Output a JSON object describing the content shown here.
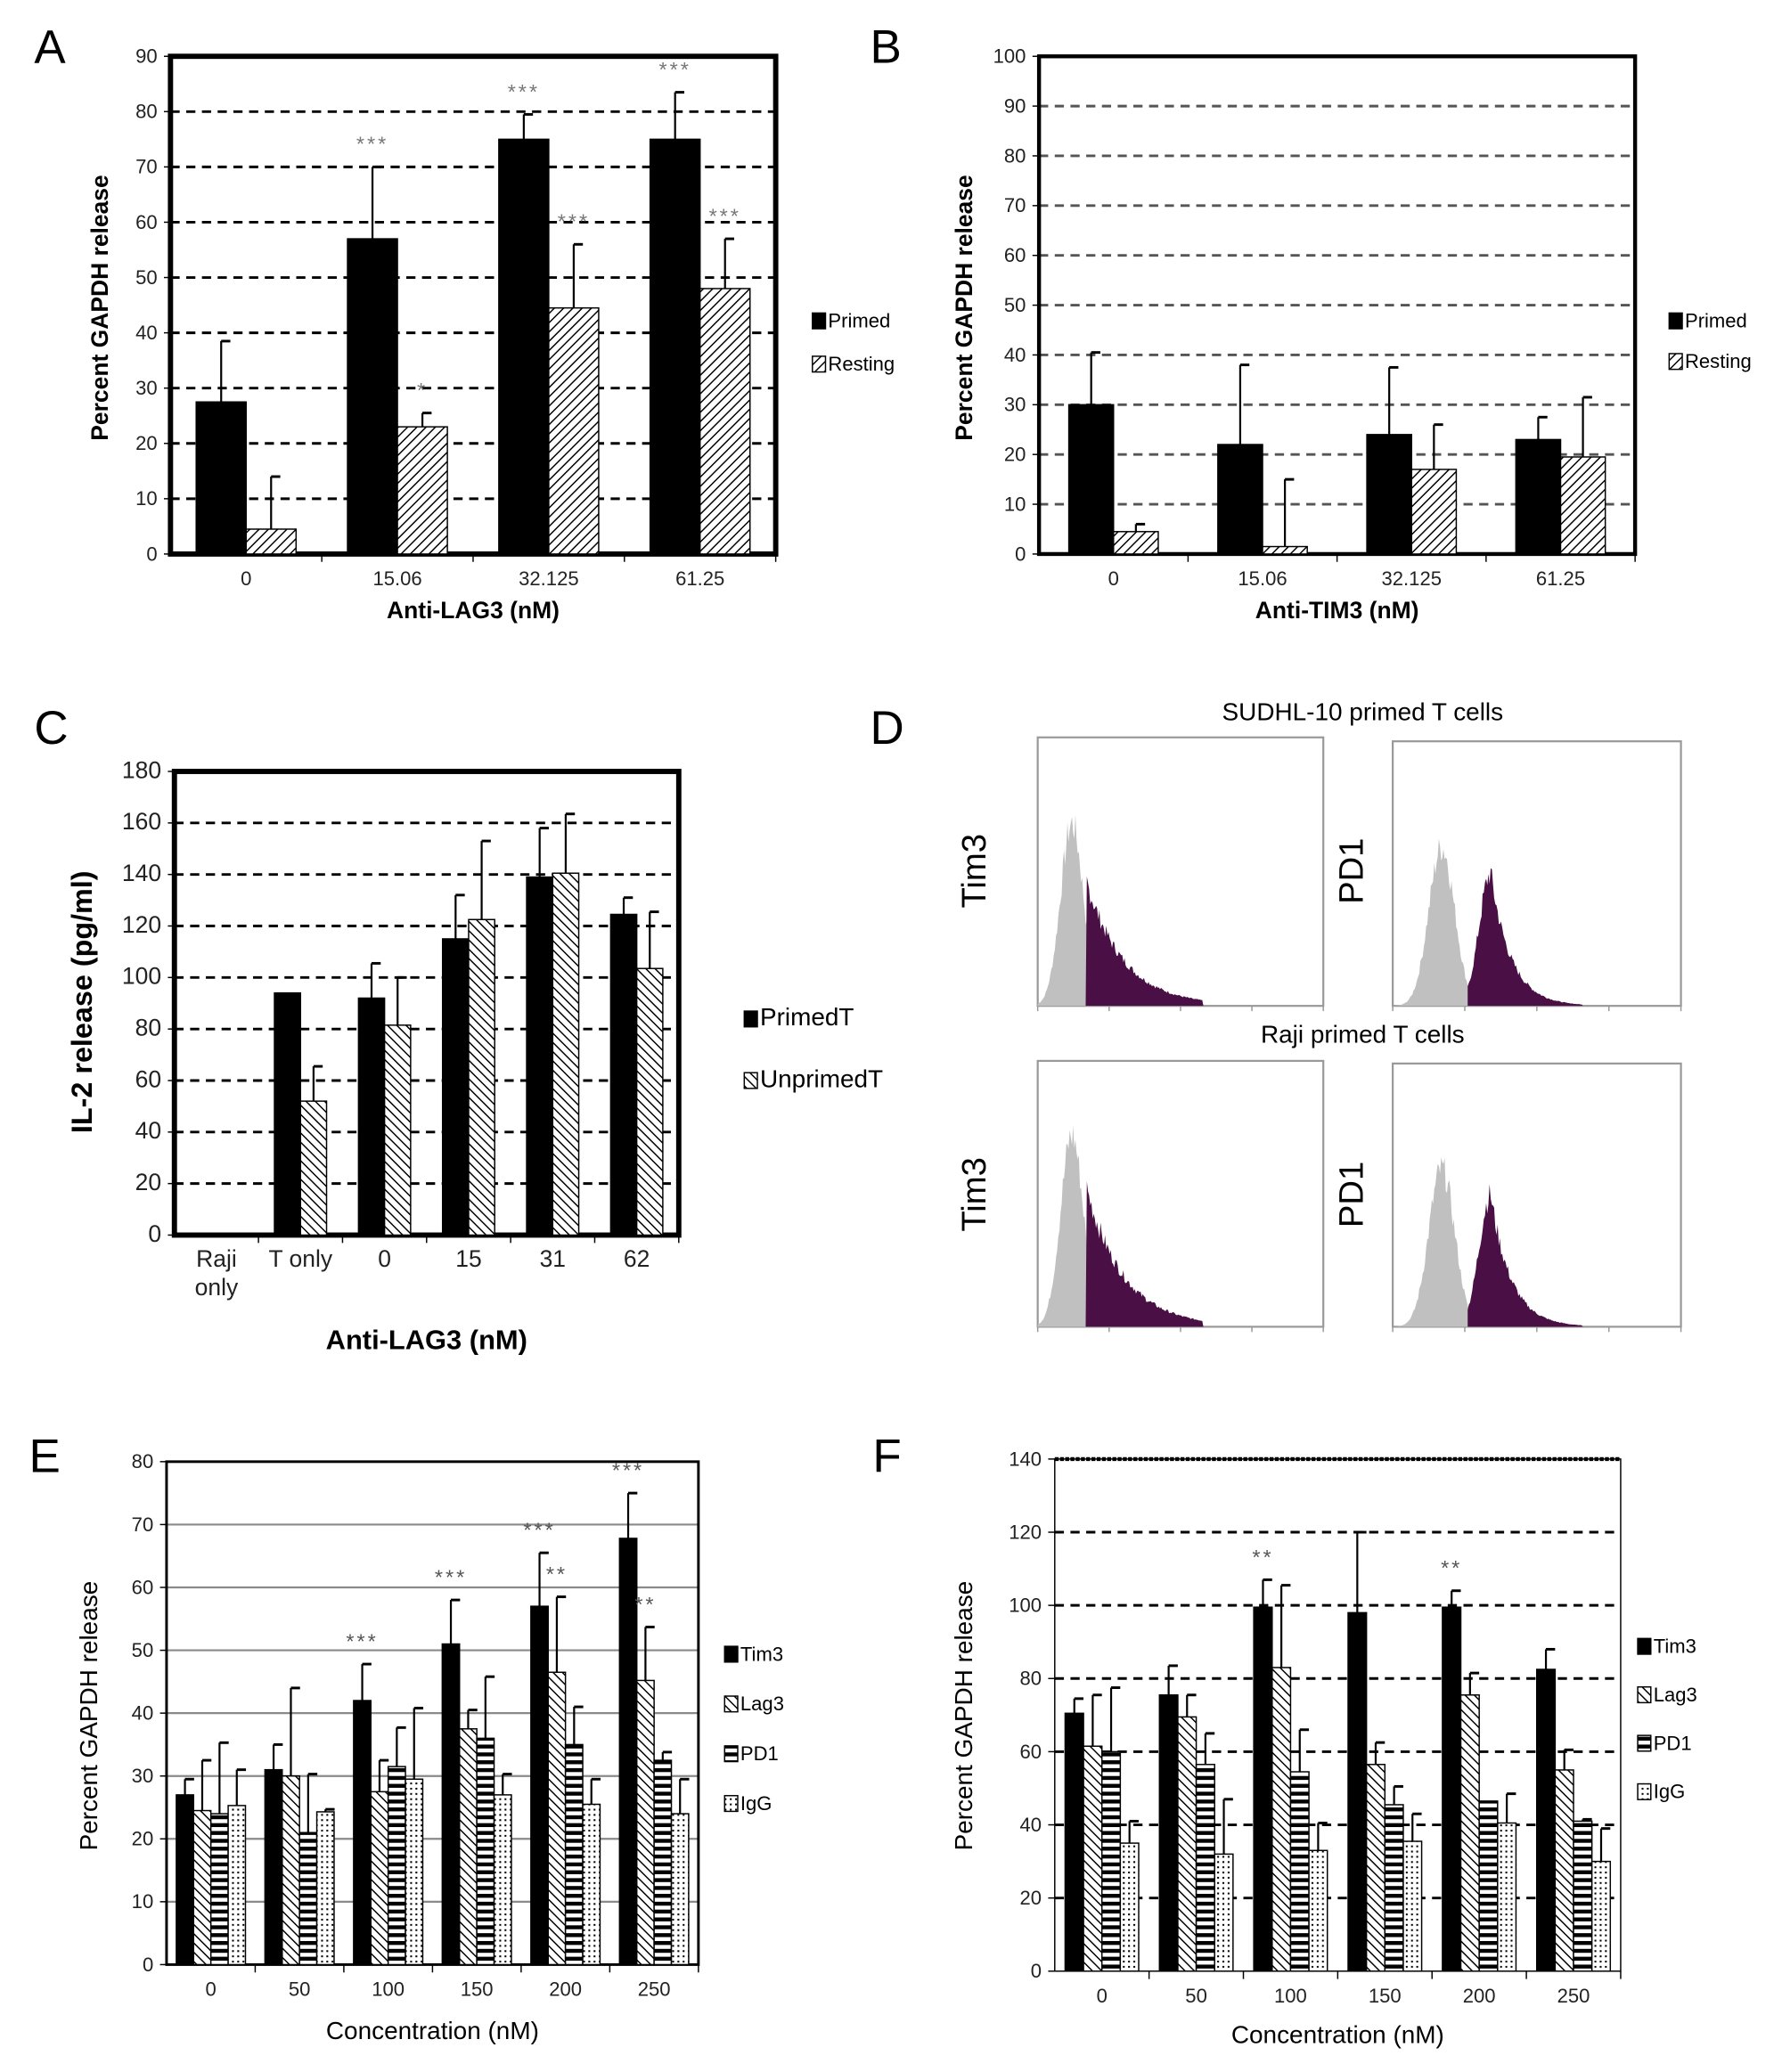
{
  "panel_letters": [
    "A",
    "B",
    "C",
    "D",
    "E",
    "F"
  ],
  "chart_data": [
    {
      "panel": "A",
      "type": "bar",
      "xlabel": "Anti-LAG3 (nM)",
      "ylabel": "Percent GAPDH release",
      "categories": [
        "0",
        "15.06",
        "32.125",
        "61.25"
      ],
      "ylim": [
        0,
        90
      ],
      "ytick_step": 10,
      "grid": "dashed",
      "legend": "right",
      "series": [
        {
          "name": "Primed",
          "pattern": "solid",
          "values": [
            27.5,
            57,
            75,
            75
          ],
          "error_top": [
            38.5,
            70,
            79.5,
            83.5
          ],
          "stars": [
            "",
            "***",
            "***",
            "***"
          ]
        },
        {
          "name": "Resting",
          "pattern": "diagonal",
          "values": [
            4.5,
            23,
            44.5,
            48
          ],
          "error_top": [
            14,
            25.5,
            56,
            57
          ],
          "stars": [
            "",
            "*",
            "***",
            "***"
          ]
        }
      ]
    },
    {
      "panel": "B",
      "type": "bar",
      "xlabel": "Anti-TIM3 (nM)",
      "ylabel": "Percent GAPDH release",
      "categories": [
        "0",
        "15.06",
        "32.125",
        "61.25"
      ],
      "ylim": [
        0,
        100
      ],
      "ytick_step": 10,
      "grid": "dashed",
      "legend": "right",
      "series": [
        {
          "name": "Primed",
          "pattern": "solid",
          "values": [
            30,
            22,
            24,
            23
          ],
          "error_top": [
            40.5,
            38,
            37.5,
            27.5
          ],
          "stars": [
            "",
            "",
            "",
            ""
          ]
        },
        {
          "name": "Resting",
          "pattern": "diagonal",
          "values": [
            4.5,
            1.5,
            17,
            19.5
          ],
          "error_top": [
            6,
            15,
            26,
            31.5
          ],
          "stars": [
            "",
            "",
            "",
            ""
          ]
        }
      ]
    },
    {
      "panel": "C",
      "type": "bar",
      "xlabel": "Anti-LAG3  (nM)",
      "ylabel": "IL-2 release  (pg/ml)",
      "categories": [
        "Raji\nonly",
        "T only",
        "0",
        "15",
        "31",
        "62"
      ],
      "ylim": [
        0,
        180
      ],
      "ytick_step": 20,
      "grid": "dashed",
      "legend": "right",
      "series": [
        {
          "name": "PrimedT",
          "pattern": "solid",
          "values": [
            0,
            94,
            92,
            115,
            139,
            124.5
          ],
          "error_top": [
            null,
            null,
            105.5,
            132,
            158,
            131
          ],
          "stars": [
            "",
            "",
            "",
            "",
            "",
            ""
          ]
        },
        {
          "name": "UnprimedT",
          "pattern": "diagonal-rev",
          "values": [
            0,
            52,
            81.5,
            122.5,
            140.5,
            103.5
          ],
          "error_top": [
            null,
            65.5,
            100,
            153,
            163.5,
            125.5
          ],
          "stars": [
            "",
            "",
            "",
            "",
            "",
            ""
          ]
        }
      ]
    },
    {
      "panel": "E",
      "type": "bar",
      "xlabel": "Concentration (nM)",
      "ylabel": "Percent GAPDH release",
      "categories": [
        "0",
        "50",
        "100",
        "150",
        "200",
        "250"
      ],
      "ylim": [
        0,
        80
      ],
      "ytick_step": 10,
      "grid": "solid",
      "legend": "right",
      "series": [
        {
          "name": "Tim3",
          "pattern": "solid",
          "values": [
            27,
            31,
            42,
            51,
            57,
            67.8
          ],
          "error_top": [
            29.5,
            35,
            47.8,
            58,
            65.5,
            75
          ],
          "stars": [
            "",
            "",
            "***",
            "***",
            "***",
            "***"
          ]
        },
        {
          "name": "Lag3",
          "pattern": "diagonal-rev",
          "values": [
            24.5,
            30,
            27.5,
            37.5,
            46.5,
            45.2
          ],
          "error_top": [
            32.5,
            44,
            32.5,
            40.5,
            58.5,
            53.7
          ],
          "stars": [
            "",
            "",
            "",
            "",
            "**",
            "**"
          ]
        },
        {
          "name": "PD1",
          "pattern": "horizontal",
          "values": [
            24,
            21,
            31.5,
            36,
            35,
            32.5
          ],
          "error_top": [
            35.3,
            30.3,
            37.7,
            45.8,
            41,
            33.8
          ],
          "stars": [
            "",
            "",
            "",
            "",
            "",
            ""
          ]
        },
        {
          "name": "IgG",
          "pattern": "dots",
          "values": [
            25.3,
            24.3,
            29.5,
            27,
            25.5,
            24
          ],
          "error_top": [
            31,
            24.7,
            40.8,
            30.3,
            29.5,
            29.5
          ],
          "stars": [
            "",
            "",
            "",
            "",
            "",
            ""
          ]
        }
      ]
    },
    {
      "panel": "F",
      "type": "bar",
      "xlabel": "Concentration (nM)",
      "ylabel": "Percent GAPDH release",
      "categories": [
        "0",
        "50",
        "100",
        "150",
        "200",
        "250"
      ],
      "ylim": [
        0,
        140
      ],
      "ytick_step": 20,
      "grid": "dashed",
      "legend": "right",
      "series": [
        {
          "name": "Tim3",
          "pattern": "solid",
          "values": [
            70.5,
            75.5,
            99.5,
            98,
            99.5,
            82.5
          ],
          "error_top": [
            74.5,
            83.5,
            107,
            120,
            104,
            88
          ],
          "stars": [
            "",
            "",
            "**",
            "",
            "**",
            ""
          ]
        },
        {
          "name": "Lag3",
          "pattern": "diagonal-rev",
          "values": [
            61.5,
            69.5,
            83,
            56.5,
            75.5,
            55
          ],
          "error_top": [
            75.5,
            75.5,
            105.5,
            62.5,
            81.5,
            60.5
          ],
          "stars": [
            "",
            "",
            "",
            "",
            "",
            ""
          ]
        },
        {
          "name": "PD1",
          "pattern": "horizontal",
          "values": [
            60,
            56.5,
            54.5,
            45.5,
            46.5,
            41
          ],
          "error_top": [
            77.5,
            65,
            66,
            50.5,
            46.5,
            41.5
          ],
          "stars": [
            "",
            "",
            "",
            "",
            "",
            ""
          ]
        },
        {
          "name": "IgG",
          "pattern": "dots",
          "values": [
            35,
            32,
            33,
            35.5,
            40.5,
            30
          ],
          "error_top": [
            41,
            47,
            40.5,
            43,
            48.5,
            39
          ],
          "stars": [
            "",
            "",
            "",
            "",
            "",
            ""
          ]
        }
      ]
    }
  ],
  "flow_panel": {
    "panel": "D",
    "row_titles": [
      "SUDHL-10 primed T cells",
      "Raji primed T cells"
    ],
    "marker_labels": [
      "Tim3",
      "PD1",
      "Tim3",
      "PD1"
    ],
    "colors": {
      "isotype": "#c0c0c0",
      "stained": "#4a0f45"
    }
  },
  "colors": {
    "bars": "#000000",
    "stars": "#808080",
    "grid_solid": "#8a8a8a"
  }
}
